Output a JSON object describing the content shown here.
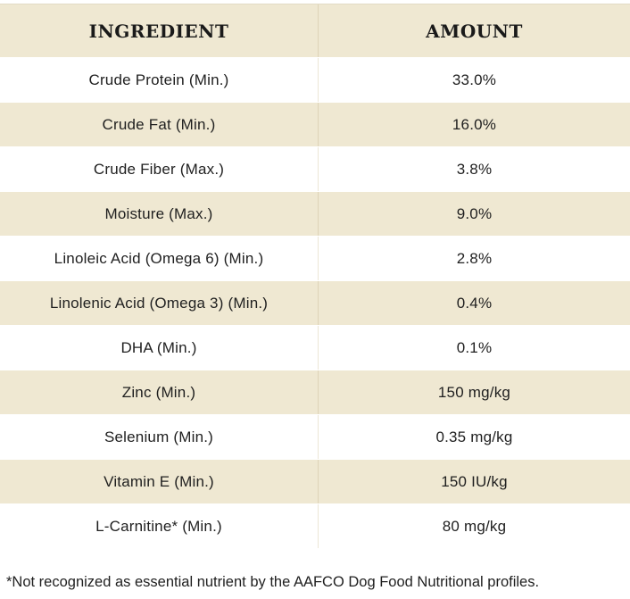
{
  "table": {
    "headers": {
      "ingredient": "INGREDIENT",
      "amount": "AMOUNT"
    },
    "rows": [
      {
        "ingredient": "Crude Protein (Min.)",
        "amount": "33.0%"
      },
      {
        "ingredient": "Crude Fat (Min.)",
        "amount": "16.0%"
      },
      {
        "ingredient": "Crude Fiber (Max.)",
        "amount": "3.8%"
      },
      {
        "ingredient": "Moisture (Max.)",
        "amount": "9.0%"
      },
      {
        "ingredient": "Linoleic Acid (Omega 6) (Min.)",
        "amount": "2.8%"
      },
      {
        "ingredient": "Linolenic Acid (Omega 3) (Min.)",
        "amount": "0.4%"
      },
      {
        "ingredient": "DHA (Min.)",
        "amount": "0.1%"
      },
      {
        "ingredient": "Zinc (Min.)",
        "amount": "150 mg/kg"
      },
      {
        "ingredient": "Selenium (Min.)",
        "amount": "0.35 mg/kg"
      },
      {
        "ingredient": "Vitamin E (Min.)",
        "amount": "150 IU/kg"
      },
      {
        "ingredient": "L-Carnitine* (Min.)",
        "amount": "80 mg/kg"
      }
    ]
  },
  "footnote": "*Not recognized as essential nutrient by the AAFCO Dog Food Nutritional profiles.",
  "colors": {
    "shaded_row": "#efe8d2",
    "plain_row": "#ffffff",
    "text": "#1f1f1f"
  }
}
